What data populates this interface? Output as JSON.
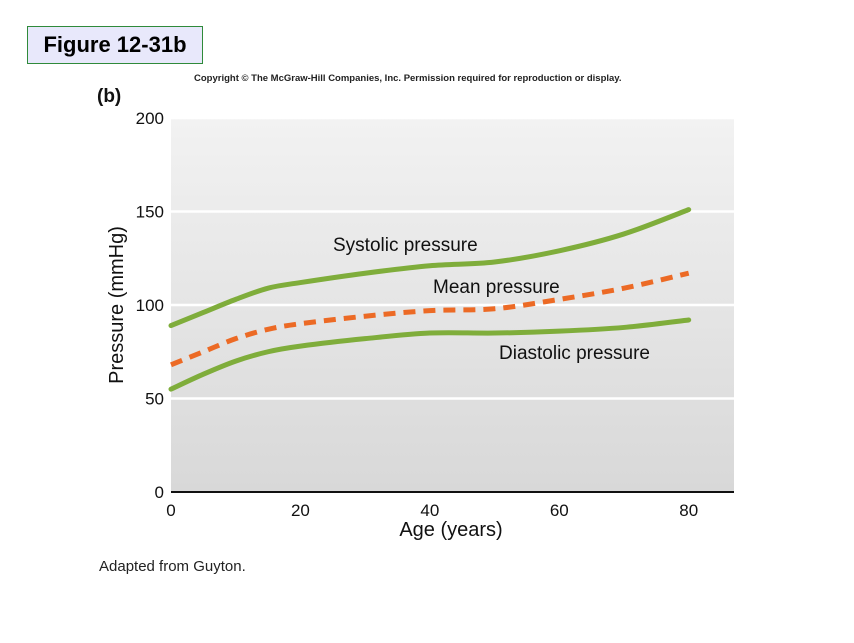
{
  "figure_badge": "Figure 12-31b",
  "copyright": "Copyright © The McGraw-Hill Companies, Inc. Permission required for reproduction or display.",
  "panel_label": "(b)",
  "source_note": "Adapted from Guyton.",
  "colors": {
    "systolic": "#7fad3b",
    "diastolic": "#7fad3b",
    "mean": "#ec6a25",
    "plot_top": "#f2f2f2",
    "plot_bottom": "#d8d8d8",
    "gridline": "#ffffff"
  },
  "chart_data": {
    "type": "line",
    "title": "",
    "xlabel": "Age (years)",
    "ylabel": "Pressure (mmHg)",
    "xlim": [
      0,
      87
    ],
    "ylim": [
      0,
      200
    ],
    "xticks": [
      0,
      20,
      40,
      60,
      80
    ],
    "yticks": [
      0,
      50,
      100,
      150,
      200
    ],
    "grid": "horizontal",
    "series": [
      {
        "name": "Systolic pressure",
        "style": "solid",
        "x": [
          0,
          5,
          10,
          15,
          20,
          30,
          40,
          50,
          60,
          70,
          80
        ],
        "y": [
          89,
          96,
          103,
          109,
          112,
          117,
          121,
          123,
          129,
          138,
          151
        ]
      },
      {
        "name": "Mean pressure",
        "style": "dashed",
        "x": [
          0,
          5,
          10,
          15,
          20,
          30,
          40,
          50,
          60,
          70,
          80
        ],
        "y": [
          68,
          75,
          82,
          87,
          90,
          94,
          97,
          98,
          103,
          109,
          117
        ]
      },
      {
        "name": "Diastolic pressure",
        "style": "solid",
        "x": [
          0,
          5,
          10,
          15,
          20,
          30,
          40,
          50,
          60,
          70,
          80
        ],
        "y": [
          55,
          63,
          70,
          75,
          78,
          82,
          85,
          85,
          86,
          88,
          92
        ]
      }
    ]
  }
}
